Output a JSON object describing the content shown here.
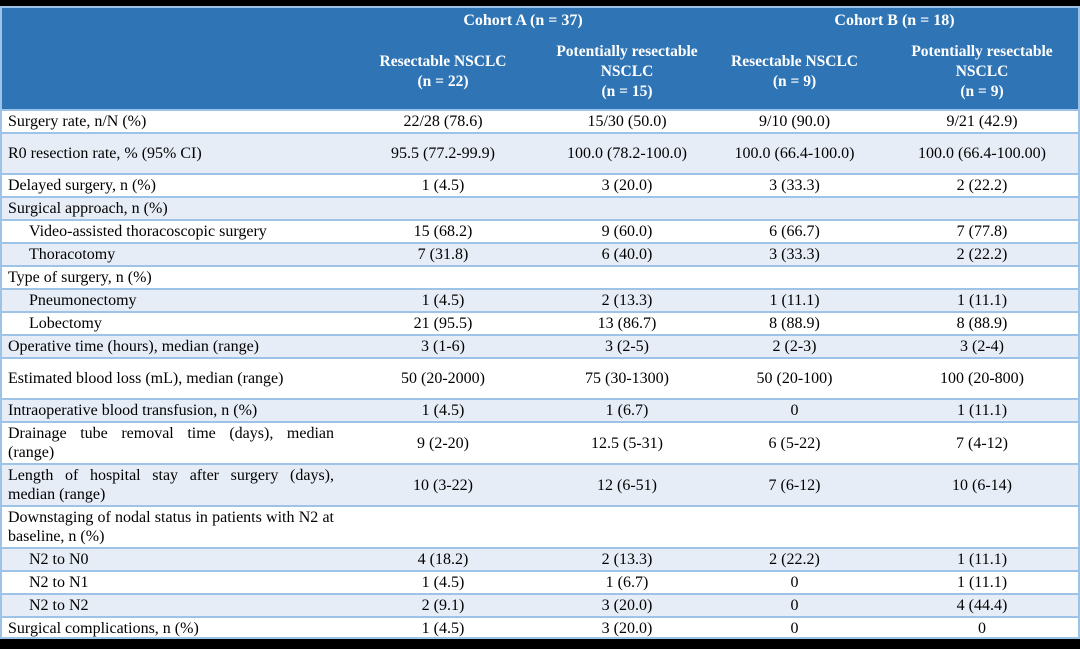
{
  "colors": {
    "header_bg": "#2F74B5",
    "header_text": "#FFFFFF",
    "band_fill": "#E7EDF6",
    "row_border": "#9DC3E6",
    "frame_bars": "#000000",
    "body_text": "#000000"
  },
  "chart_data": {
    "type": "table",
    "title": "Surgical outcomes by cohort and resectability",
    "column_groups": [
      {
        "label": "Cohort A (n = 37)",
        "span": 2
      },
      {
        "label": "Cohort B (n = 18)",
        "span": 2
      }
    ],
    "columns": [
      "Resectable NSCLC\n(n = 22)",
      "Potentially resectable NSCLC\n(n = 15)",
      "Resectable NSCLC\n(n = 9)",
      "Potentially resectable NSCLC\n(n = 9)"
    ],
    "rows": [
      {
        "label": "Surgery rate, n/N (%)",
        "indent": false,
        "tall": false,
        "values": [
          "22/28 (78.6)",
          "15/30 (50.0)",
          "9/10 (90.0)",
          "9/21 (42.9)"
        ]
      },
      {
        "label": "R0 resection rate, % (95% CI)",
        "indent": false,
        "tall": true,
        "values": [
          "95.5 (77.2-99.9)",
          "100.0 (78.2-100.0)",
          "100.0 (66.4-100.0)",
          "100.0 (66.4-100.00)"
        ]
      },
      {
        "label": "Delayed surgery, n (%)",
        "indent": false,
        "tall": false,
        "values": [
          "1 (4.5)",
          "3 (20.0)",
          "3 (33.3)",
          "2 (22.2)"
        ]
      },
      {
        "label": "Surgical approach, n (%)",
        "indent": false,
        "tall": false,
        "values": [
          "",
          "",
          "",
          ""
        ]
      },
      {
        "label": "Video-assisted thoracoscopic surgery",
        "indent": true,
        "tall": false,
        "values": [
          "15 (68.2)",
          "9 (60.0)",
          "6 (66.7)",
          "7 (77.8)"
        ]
      },
      {
        "label": "Thoracotomy",
        "indent": true,
        "tall": false,
        "values": [
          "7 (31.8)",
          "6 (40.0)",
          "3 (33.3)",
          "2 (22.2)"
        ]
      },
      {
        "label": "Type of surgery, n (%)",
        "indent": false,
        "tall": false,
        "values": [
          "",
          "",
          "",
          ""
        ]
      },
      {
        "label": "Pneumonectomy",
        "indent": true,
        "tall": false,
        "values": [
          "1 (4.5)",
          "2 (13.3)",
          "1 (11.1)",
          "1 (11.1)"
        ]
      },
      {
        "label": "Lobectomy",
        "indent": true,
        "tall": false,
        "values": [
          "21 (95.5)",
          "13 (86.7)",
          "8 (88.9)",
          "8 (88.9)"
        ]
      },
      {
        "label": "Operative time (hours), median (range)",
        "indent": false,
        "tall": false,
        "values": [
          "3 (1-6)",
          "3 (2-5)",
          "2 (2-3)",
          "3 (2-4)"
        ]
      },
      {
        "label": "Estimated blood loss (mL), median (range)",
        "indent": false,
        "tall": true,
        "values": [
          "50 (20-2000)",
          "75 (30-1300)",
          "50 (20-100)",
          "100 (20-800)"
        ]
      },
      {
        "label": "Intraoperative blood transfusion, n (%)",
        "indent": false,
        "tall": false,
        "values": [
          "1 (4.5)",
          "1 (6.7)",
          "0",
          "1 (11.1)"
        ]
      },
      {
        "label": "Drainage tube removal time (days), median (range)",
        "indent": false,
        "tall": false,
        "values": [
          "9 (2-20)",
          "12.5 (5-31)",
          "6 (5-22)",
          "7 (4-12)"
        ]
      },
      {
        "label": "Length of hospital stay after surgery (days), median (range)",
        "indent": false,
        "tall": false,
        "values": [
          "10 (3-22)",
          "12 (6-51)",
          "7 (6-12)",
          "10 (6-14)"
        ]
      },
      {
        "label": "Downstaging of nodal status in patients with N2 at baseline, n (%)",
        "indent": false,
        "tall": false,
        "values": [
          "",
          "",
          "",
          ""
        ]
      },
      {
        "label": "N2 to N0",
        "indent": true,
        "tall": false,
        "values": [
          "4 (18.2)",
          "2 (13.3)",
          "2 (22.2)",
          "1 (11.1)"
        ]
      },
      {
        "label": "N2 to N1",
        "indent": true,
        "tall": false,
        "values": [
          "1 (4.5)",
          "1 (6.7)",
          "0",
          "1 (11.1)"
        ]
      },
      {
        "label": "N2 to N2",
        "indent": true,
        "tall": false,
        "values": [
          "2 (9.1)",
          "3 (20.0)",
          "0",
          "4 (44.4)"
        ]
      },
      {
        "label": "Surgical complications, n (%)",
        "indent": false,
        "tall": false,
        "values": [
          "1 (4.5)",
          "3 (20.0)",
          "0",
          "0"
        ]
      }
    ]
  }
}
